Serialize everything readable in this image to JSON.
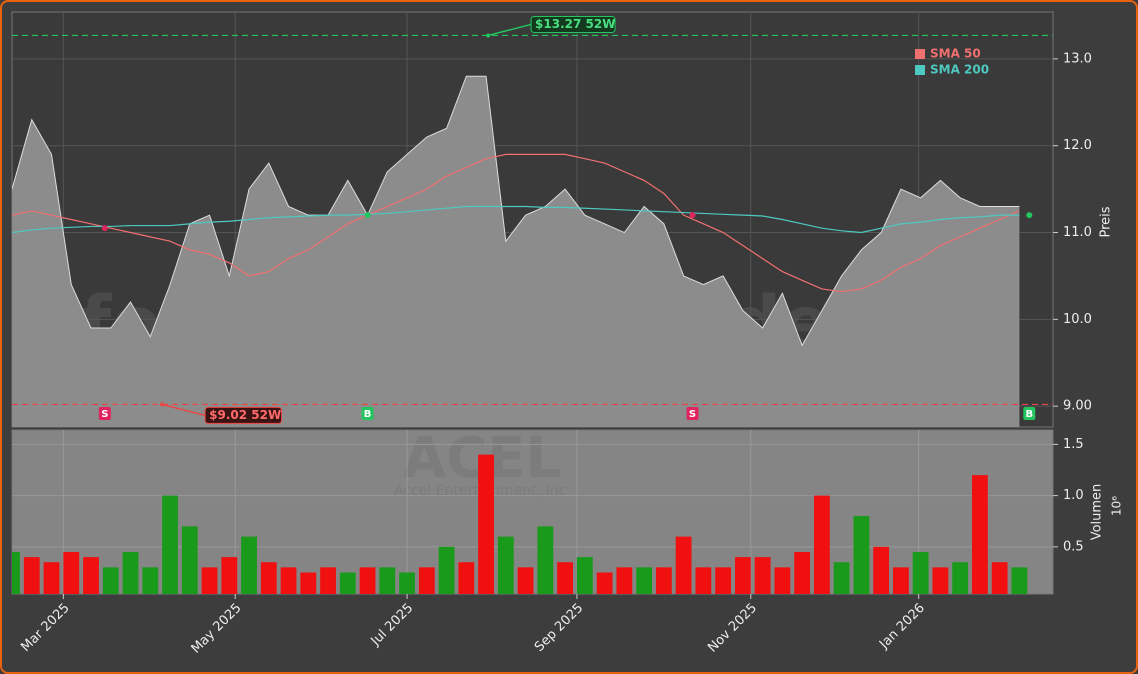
{
  "chart_data": [
    {
      "type": "area",
      "ylabel": "Preis",
      "watermark": "forexsignale.trade",
      "x": [
        0,
        1,
        2,
        3,
        4,
        5,
        6,
        7,
        8,
        9,
        10,
        11,
        12,
        13,
        14,
        15,
        16,
        17,
        18,
        19,
        20,
        21,
        22,
        23,
        24,
        25,
        26,
        27,
        28,
        29,
        30,
        31,
        32,
        33,
        34,
        35,
        36,
        37,
        38,
        39,
        40,
        41,
        42,
        43,
        44,
        45,
        46,
        47,
        48,
        49,
        50,
        51
      ],
      "values": [
        11.5,
        12.3,
        11.9,
        10.4,
        9.9,
        9.9,
        10.2,
        9.8,
        10.4,
        11.1,
        11.2,
        10.5,
        11.5,
        11.8,
        11.3,
        11.2,
        11.2,
        11.6,
        11.2,
        11.7,
        11.9,
        12.1,
        12.2,
        12.8,
        12.8,
        10.9,
        11.2,
        11.3,
        11.5,
        11.2,
        11.1,
        11.0,
        11.3,
        11.1,
        10.5,
        10.4,
        10.5,
        10.1,
        9.9,
        10.3,
        9.7,
        10.1,
        10.5,
        10.8,
        11.0,
        11.5,
        11.4,
        11.6,
        11.4,
        11.3,
        11.3,
        11.3
      ],
      "color": "#8c8c8c",
      "series": [
        {
          "name": "SMA 50",
          "color": "#f07070",
          "values": [
            11.2,
            11.25,
            11.2,
            11.15,
            11.1,
            11.05,
            11.0,
            10.95,
            10.9,
            10.8,
            10.75,
            10.65,
            10.5,
            10.55,
            10.7,
            10.8,
            10.95,
            11.1,
            11.2,
            11.3,
            11.4,
            11.5,
            11.65,
            11.75,
            11.85,
            11.9,
            11.9,
            11.9,
            11.9,
            11.85,
            11.8,
            11.7,
            11.6,
            11.45,
            11.2,
            11.1,
            11.0,
            10.85,
            10.7,
            10.55,
            10.45,
            10.35,
            10.32,
            10.35,
            10.45,
            10.6,
            10.7,
            10.85,
            10.95,
            11.05,
            11.15,
            11.25
          ]
        },
        {
          "name": "SMA 200",
          "color": "#4fc9c0",
          "values": [
            11.0,
            11.03,
            11.05,
            11.06,
            11.07,
            11.07,
            11.08,
            11.08,
            11.08,
            11.1,
            11.12,
            11.13,
            11.15,
            11.17,
            11.18,
            11.19,
            11.2,
            11.2,
            11.21,
            11.22,
            11.24,
            11.26,
            11.28,
            11.3,
            11.3,
            11.3,
            11.3,
            11.29,
            11.29,
            11.28,
            11.27,
            11.26,
            11.25,
            11.24,
            11.23,
            11.22,
            11.21,
            11.2,
            11.19,
            11.15,
            11.1,
            11.05,
            11.02,
            11.0,
            11.05,
            11.1,
            11.12,
            11.15,
            11.17,
            11.18,
            11.2,
            11.2
          ]
        }
      ],
      "annotations": [
        {
          "text": "$13.27 52W",
          "value": 13.27,
          "x": 24.1,
          "color": "#22c55e"
        },
        {
          "text": "$9.02 52W",
          "value": 9.02,
          "x": 7.6,
          "color": "#ef4444"
        }
      ],
      "signals": [
        {
          "label": "S",
          "x": 4.7,
          "value": 11.05,
          "color": "#e0245e"
        },
        {
          "label": "B",
          "x": 18.0,
          "value": 11.2,
          "color": "#22c55e"
        },
        {
          "label": "S",
          "x": 34.45,
          "value": 11.2,
          "color": "#e0245e"
        },
        {
          "label": "B",
          "x": 51.5,
          "value": 11.2,
          "color": "#22c55e"
        }
      ],
      "xlim": [
        0,
        52.7
      ],
      "xticks": [
        {
          "value": 2.6,
          "label": "Mar 2025"
        },
        {
          "value": 11.3,
          "label": "May 2025"
        },
        {
          "value": 20.0,
          "label": "Jul 2025"
        },
        {
          "value": 28.6,
          "label": "Sep 2025"
        },
        {
          "value": 37.4,
          "label": "Nov 2025"
        },
        {
          "value": 45.9,
          "label": "Jan 2026"
        }
      ],
      "ylim": [
        8.76,
        13.54
      ],
      "yticks": [
        {
          "value": 9,
          "label": "9.00"
        },
        {
          "value": 10,
          "label": "10.0"
        },
        {
          "value": 11,
          "label": "11.0"
        },
        {
          "value": 12,
          "label": "12.0"
        },
        {
          "value": 13,
          "label": "13.0"
        }
      ],
      "grid": true
    },
    {
      "type": "bar",
      "ylabel": "Volumen",
      "scale_label": "10⁶",
      "watermark": "ACEL",
      "watermark_subtitle": "Accel Entertainment, Inc",
      "x": [
        0,
        1,
        2,
        3,
        4,
        5,
        6,
        7,
        8,
        9,
        10,
        11,
        12,
        13,
        14,
        15,
        16,
        17,
        18,
        19,
        20,
        21,
        22,
        23,
        24,
        25,
        26,
        27,
        28,
        29,
        30,
        31,
        32,
        33,
        34,
        35,
        36,
        37,
        38,
        39,
        40,
        41,
        42,
        43,
        44,
        45,
        46,
        47,
        48,
        49,
        50,
        51
      ],
      "values": [
        0.45,
        0.4,
        0.35,
        0.45,
        0.4,
        0.3,
        0.45,
        0.3,
        1.0,
        0.7,
        0.3,
        0.4,
        0.6,
        0.35,
        0.3,
        0.25,
        0.3,
        0.25,
        0.3,
        0.3,
        0.25,
        0.3,
        0.5,
        0.35,
        1.4,
        0.6,
        0.3,
        0.7,
        0.35,
        0.4,
        0.25,
        0.3,
        0.3,
        0.3,
        0.6,
        0.3,
        0.3,
        0.4,
        0.4,
        0.3,
        0.45,
        1.0,
        0.35,
        0.8,
        0.5,
        0.3,
        0.45,
        0.3,
        0.35,
        1.2,
        0.35,
        0.3
      ],
      "colors": [
        "#1a9a1a",
        "#f01010",
        "#f01010",
        "#f01010",
        "#f01010",
        "#1a9a1a",
        "#1a9a1a",
        "#1a9a1a",
        "#1a9a1a",
        "#1a9a1a",
        "#f01010",
        "#f01010",
        "#1a9a1a",
        "#f01010",
        "#f01010",
        "#f01010",
        "#f01010",
        "#1a9a1a",
        "#f01010",
        "#1a9a1a",
        "#1a9a1a",
        "#f01010",
        "#1a9a1a",
        "#f01010",
        "#f01010",
        "#1a9a1a",
        "#f01010",
        "#1a9a1a",
        "#f01010",
        "#1a9a1a",
        "#f01010",
        "#f01010",
        "#1a9a1a",
        "#f01010",
        "#f01010",
        "#f01010",
        "#f01010",
        "#f01010",
        "#f01010",
        "#f01010",
        "#f01010",
        "#f01010",
        "#1a9a1a",
        "#1a9a1a",
        "#f01010",
        "#f01010",
        "#1a9a1a",
        "#f01010",
        "#1a9a1a",
        "#f01010",
        "#f01010",
        "#1a9a1a"
      ],
      "xlim": [
        0,
        52.7
      ],
      "ylim": [
        0.04,
        1.64
      ],
      "yticks": [
        0.5,
        {
          "value": 1,
          "label": "1.0"
        },
        1.5
      ],
      "grid": true
    }
  ]
}
